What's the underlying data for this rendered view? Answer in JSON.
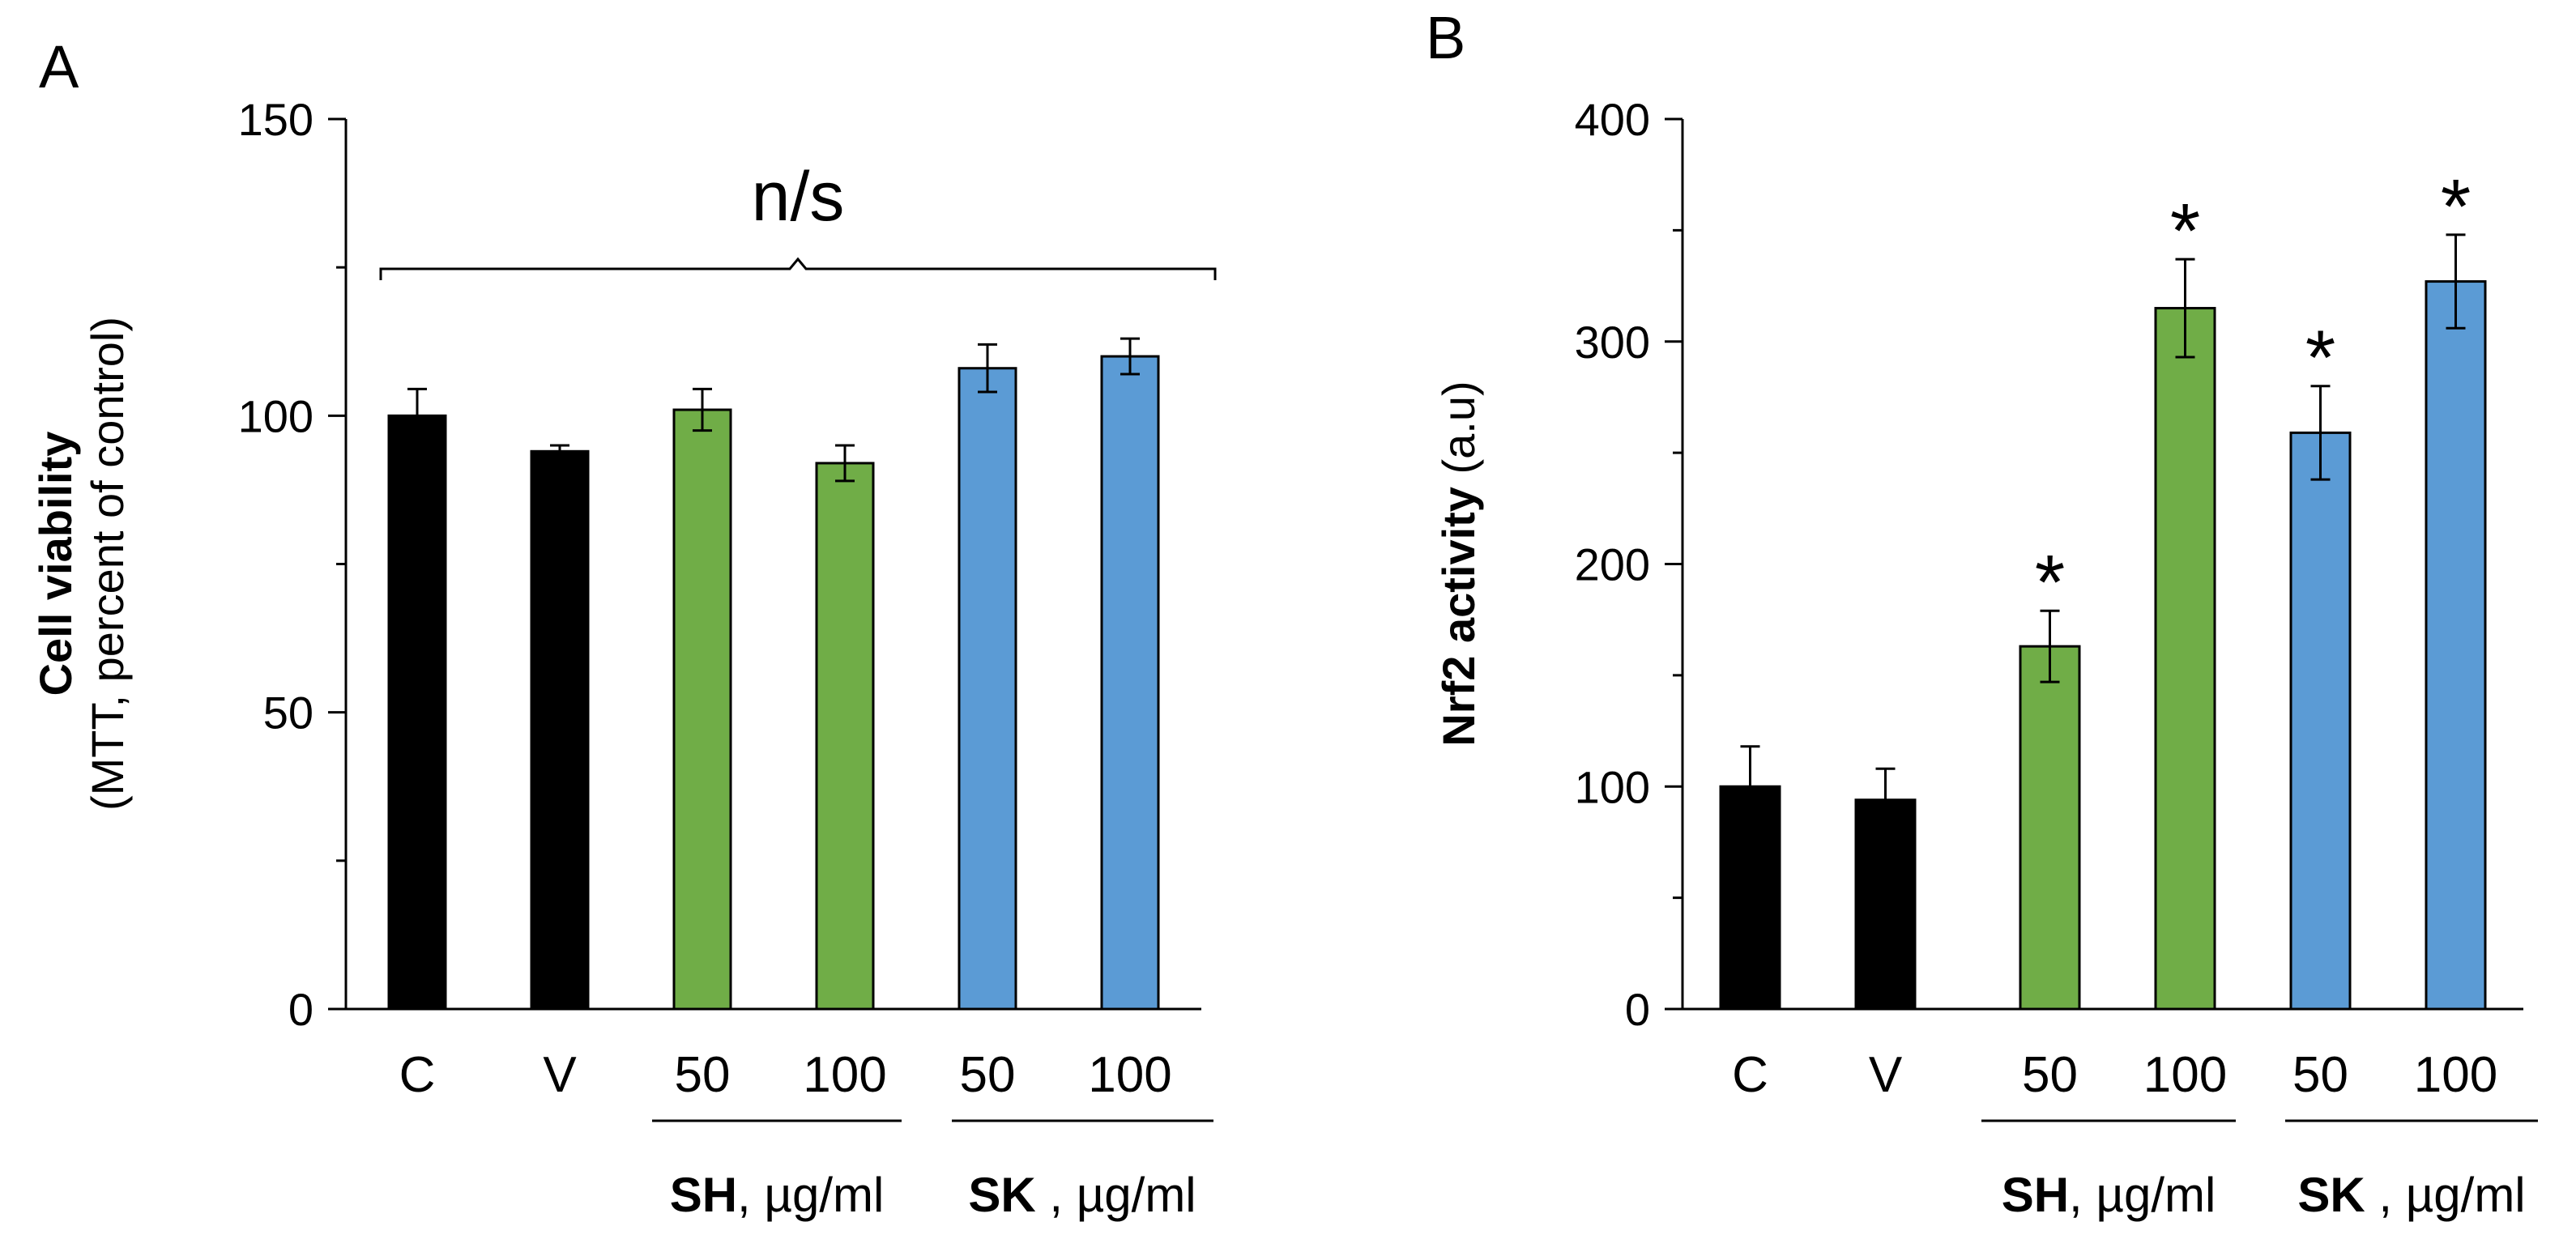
{
  "colors": {
    "control": "#000000",
    "sh": "#70ad47",
    "sk": "#5b9bd5",
    "axis": "#000000"
  },
  "chart_data": [
    {
      "type": "bar",
      "panel_label": "A",
      "ylabel_bold": "Cell viability",
      "ylabel_sub": "(MTT, percent of control)",
      "ylim": [
        0,
        150
      ],
      "yticks": [
        0,
        50,
        100,
        150
      ],
      "ytick_labels": [
        "0",
        "50",
        "100",
        "150"
      ],
      "categories": [
        "C",
        "V",
        "50",
        "100",
        "50",
        "100"
      ],
      "values": [
        100,
        94,
        101,
        92,
        108,
        110
      ],
      "errors": [
        4.5,
        1,
        3.5,
        3,
        4,
        3
      ],
      "groups": [
        "control",
        "control",
        "sh",
        "sh",
        "sk",
        "sk"
      ],
      "stars": [
        "",
        "",
        "",
        "",
        "",
        ""
      ],
      "bracket_label": "n/s",
      "group_labels": [
        {
          "bold": "SH",
          "rest": ", µg/ml"
        },
        {
          "bold": "SK",
          "rest": " , µg/ml"
        }
      ]
    },
    {
      "type": "bar",
      "panel_label": "B",
      "ylabel_bold": "Nrf2 activity",
      "ylabel_sub": " (a.u)",
      "ylim": [
        0,
        400
      ],
      "yticks": [
        0,
        100,
        200,
        300,
        400
      ],
      "ytick_labels": [
        "0",
        "100",
        "200",
        "300",
        "400"
      ],
      "categories": [
        "C",
        "V",
        "50",
        "100",
        "50",
        "100"
      ],
      "values": [
        100,
        94,
        163,
        315,
        259,
        327
      ],
      "errors": [
        18,
        14,
        16,
        22,
        21,
        21
      ],
      "groups": [
        "control",
        "control",
        "sh",
        "sh",
        "sk",
        "sk"
      ],
      "stars": [
        "",
        "",
        "*",
        "*",
        "*",
        "*"
      ],
      "bracket_label": "",
      "group_labels": [
        {
          "bold": "SH",
          "rest": ", µg/ml"
        },
        {
          "bold": "SK",
          "rest": " , µg/ml"
        }
      ]
    }
  ]
}
